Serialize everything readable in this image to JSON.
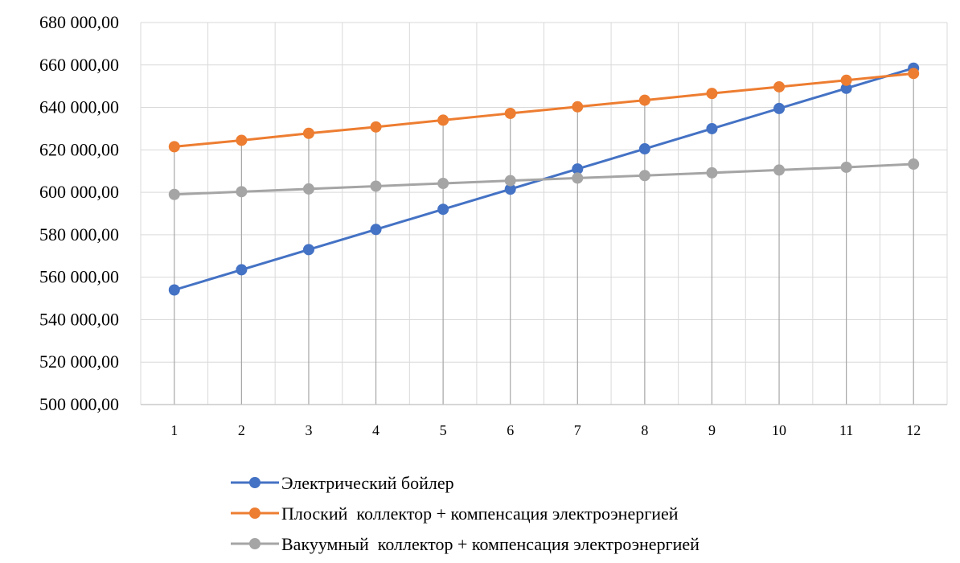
{
  "chart_data": {
    "type": "line",
    "title": "",
    "xlabel": "",
    "ylabel": "",
    "categories": [
      "1",
      "2",
      "3",
      "4",
      "5",
      "6",
      "7",
      "8",
      "9",
      "10",
      "11",
      "12"
    ],
    "ylim": [
      500000,
      680000
    ],
    "y_ticks": [
      500000,
      520000,
      540000,
      560000,
      580000,
      600000,
      620000,
      640000,
      660000,
      680000
    ],
    "y_tick_labels": [
      "500 000,00",
      "520 000,00",
      "540 000,00",
      "560 000,00",
      "580 000,00",
      "600 000,00",
      "620 000,00",
      "640 000,00",
      "660 000,00",
      "680 000,00"
    ],
    "grid": true,
    "legend_position": "bottom",
    "series": [
      {
        "name": "Электрический бойлер",
        "color": "#4472c4",
        "values": [
          554000,
          563500,
          573000,
          582500,
          592000,
          601500,
          611000,
          620500,
          630000,
          639500,
          649000,
          658500
        ]
      },
      {
        "name": "Плоский  коллектор + компенсация электроэнергией",
        "color": "#ed7d31",
        "values": [
          621500,
          624500,
          627800,
          630800,
          634000,
          637200,
          640300,
          643400,
          646600,
          649700,
          652800,
          656000
        ]
      },
      {
        "name": "Вакуумный  коллектор + компенсация электроэнергией",
        "color": "#a5a5a5",
        "values": [
          599000,
          600300,
          601600,
          602900,
          604200,
          605500,
          606700,
          607900,
          609200,
          610500,
          611800,
          613300
        ]
      }
    ]
  }
}
